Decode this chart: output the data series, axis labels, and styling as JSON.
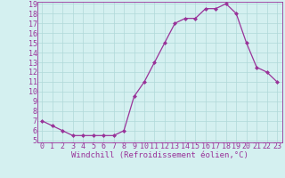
{
  "x": [
    0,
    1,
    2,
    3,
    4,
    5,
    6,
    7,
    8,
    9,
    10,
    11,
    12,
    13,
    14,
    15,
    16,
    17,
    18,
    19,
    20,
    21,
    22,
    23
  ],
  "y": [
    7.0,
    6.5,
    6.0,
    5.5,
    5.5,
    5.5,
    5.5,
    5.5,
    6.0,
    9.5,
    11.0,
    13.0,
    15.0,
    17.0,
    17.5,
    17.5,
    18.5,
    18.5,
    19.0,
    18.0,
    15.0,
    12.5,
    12.0,
    11.0
  ],
  "line_color": "#993399",
  "marker": "D",
  "marker_size": 2.0,
  "linewidth": 0.9,
  "bg_color": "#d4f0f0",
  "grid_color": "#b0d8d8",
  "xlabel": "Windchill (Refroidissement éolien,°C)",
  "xlabel_fontsize": 6.5,
  "tick_fontsize": 6,
  "ylim": [
    5,
    19
  ],
  "xlim": [
    -0.5,
    23.5
  ],
  "yticks": [
    5,
    6,
    7,
    8,
    9,
    10,
    11,
    12,
    13,
    14,
    15,
    16,
    17,
    18,
    19
  ],
  "xticks": [
    0,
    1,
    2,
    3,
    4,
    5,
    6,
    7,
    8,
    9,
    10,
    11,
    12,
    13,
    14,
    15,
    16,
    17,
    18,
    19,
    20,
    21,
    22,
    23
  ],
  "spine_color": "#993399"
}
